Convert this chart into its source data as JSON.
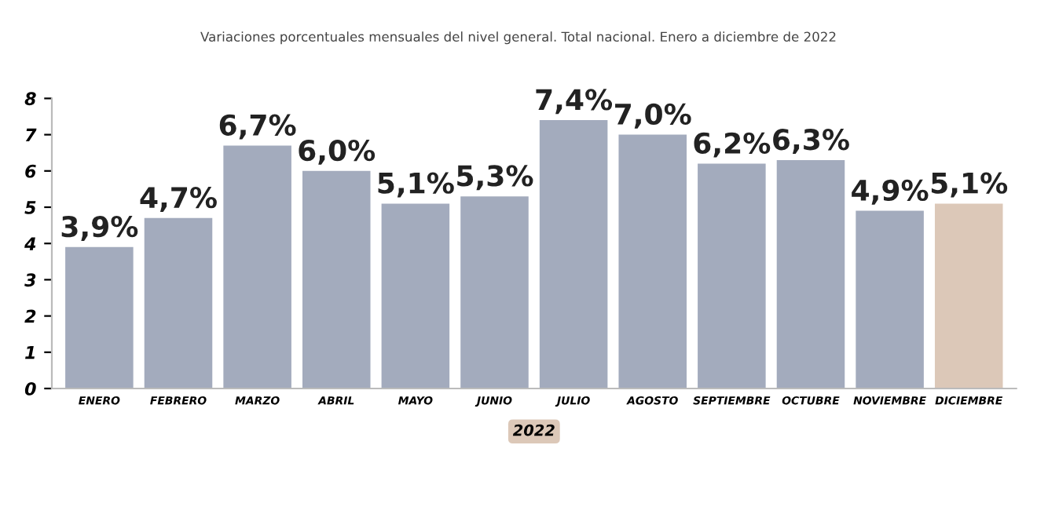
{
  "chart_data": {
    "type": "bar",
    "title": "Variaciones porcentuales mensuales del nivel general. Total nacional. Enero a diciembre de 2022",
    "xlabel": "2022",
    "categories": [
      "ENERO",
      "FEBRERO",
      "MARZO",
      "ABRIL",
      "MAYO",
      "JUNIO",
      "JULIO",
      "AGOSTO",
      "SEPTIEMBRE",
      "OCTUBRE",
      "NOVIEMBRE",
      "DICIEMBRE"
    ],
    "values": [
      3.9,
      4.7,
      6.7,
      6.0,
      5.1,
      5.3,
      7.4,
      7.0,
      6.2,
      6.3,
      4.9,
      5.1
    ],
    "value_labels": [
      "3,9%",
      "4,7%",
      "6,7%",
      "6,0%",
      "5,1%",
      "5,3%",
      "7,4%",
      "7,0%",
      "6,2%",
      "6,3%",
      "4,9%",
      "5,1%"
    ],
    "colors": [
      "#a3abbd",
      "#a3abbd",
      "#a3abbd",
      "#a3abbd",
      "#a3abbd",
      "#a3abbd",
      "#a3abbd",
      "#a3abbd",
      "#a3abbd",
      "#a3abbd",
      "#a3abbd",
      "#dcc8b8"
    ],
    "ylim": [
      0,
      8
    ],
    "yticks": [
      0,
      1,
      2,
      3,
      4,
      5,
      6,
      7,
      8
    ],
    "grid": false
  }
}
